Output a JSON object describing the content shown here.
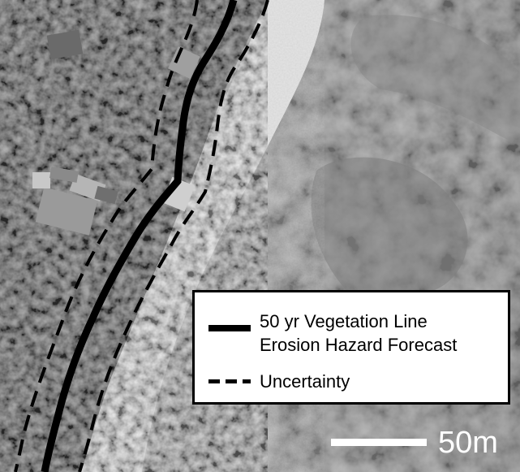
{
  "map": {
    "imagery": "grayscale aerial photograph of a vegetated coastline, sandy beach and nearshore reef"
  },
  "legend": {
    "forecast_line_label_1": "50 yr Vegetation Line",
    "forecast_line_label_2": "Erosion Hazard Forecast",
    "uncertainty_label": "Uncertainty",
    "forecast_line_style": "solid black",
    "uncertainty_line_style": "dashed black"
  },
  "scale_bar": {
    "label": "50m"
  },
  "colors": {
    "forecast_line": "#000000",
    "uncertainty_line": "#000000",
    "legend_background": "#ffffff",
    "scale_bar": "#ffffff",
    "sand": "#dedede",
    "water": "#8f8f8f",
    "vegetation": "#4a4a4a"
  }
}
